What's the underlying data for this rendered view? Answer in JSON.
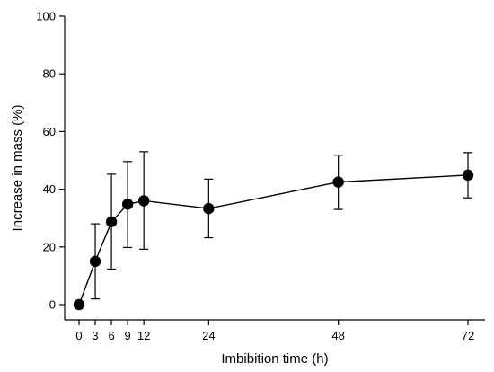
{
  "chart_data": {
    "type": "scatter",
    "title": "",
    "xlabel": "Imbibition time (h)",
    "ylabel": "Increase in mass (%)",
    "xlim": [
      -2,
      76
    ],
    "ylim": [
      -5,
      100
    ],
    "xticks": [
      0,
      3,
      6,
      9,
      12,
      24,
      48,
      72
    ],
    "yticks": [
      0,
      20,
      40,
      60,
      80,
      100
    ],
    "grid": false,
    "lines_connect_points": true,
    "marker": "filled-circle",
    "series": [
      {
        "x": [
          0,
          3,
          6,
          9,
          12,
          24,
          48,
          72
        ],
        "y": [
          0,
          15,
          28.7,
          34.8,
          36,
          33.3,
          42.5,
          44.9
        ],
        "error_low": [
          0,
          2,
          12.3,
          19.8,
          19.2,
          23.2,
          33,
          37
        ],
        "error_high": [
          0,
          28,
          45.2,
          49.6,
          53,
          43.5,
          51.8,
          52.7
        ]
      }
    ]
  }
}
